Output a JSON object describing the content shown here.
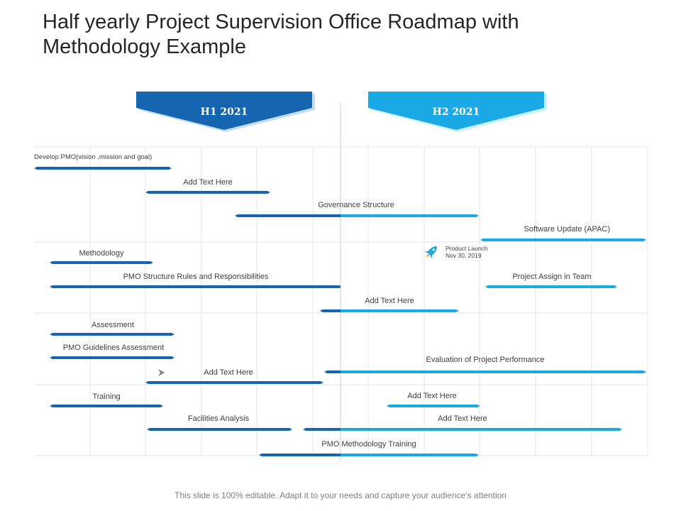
{
  "slide": {
    "title": "Half yearly Project Supervision Office Roadmap with Methodology Example",
    "footer": "This slide is 100% editable. Adapt it to your needs and capture your audience's attention"
  },
  "colors": {
    "dark": "#1565b0",
    "light": "#1ba9e6",
    "grid": "#e6e6e6",
    "divider": "#d4d4d4"
  },
  "periods": [
    {
      "label": "H1 2021",
      "color": "#1565b0"
    },
    {
      "label": "H2 2021",
      "color": "#1ba9e6"
    }
  ],
  "tasks": [
    {
      "label": "Develop PMO(vision ,mission  and  goal)",
      "half": "H1",
      "align": "left"
    },
    {
      "label": "Add Text Here",
      "half": "H1",
      "align": "center"
    },
    {
      "label": "Governance Structure",
      "half": "H1-H2",
      "align": "center"
    },
    {
      "label": "Software Update (APAC)",
      "half": "H2",
      "align": "right"
    },
    {
      "label": "Methodology",
      "half": "H1",
      "align": "center"
    },
    {
      "label": "PMO  Structure Rules and Responsibilities",
      "half": "H1",
      "align": "center"
    },
    {
      "label": "Project Assign in Team",
      "half": "H2",
      "align": "center"
    },
    {
      "label": "Add Text Here",
      "half": "H1-H2",
      "align": "center"
    },
    {
      "label": "Assessment",
      "half": "H1",
      "align": "center"
    },
    {
      "label": "PMO  Guidelines Assessment",
      "half": "H1",
      "align": "center"
    },
    {
      "label": "Evaluation of Project Performance",
      "half": "H1-H2",
      "align": "center"
    },
    {
      "label": "Add Text Here",
      "half": "H1",
      "align": "center"
    },
    {
      "label": "Training",
      "half": "H1",
      "align": "center"
    },
    {
      "label": "Add Text Here",
      "half": "H2",
      "align": "center"
    },
    {
      "label": "Facilities Analysis",
      "half": "H1",
      "align": "center"
    },
    {
      "label": "Add Text Here",
      "half": "H1-H2",
      "align": "center"
    },
    {
      "label": "PMO  Methodology Training",
      "half": "H1-H2",
      "align": "center"
    }
  ],
  "milestone": {
    "line1": "Product Launch",
    "line2": "Nov 30, 2019",
    "icon": "rocket-icon"
  },
  "markers": [
    {
      "icon": "chevron-right-icon"
    }
  ]
}
